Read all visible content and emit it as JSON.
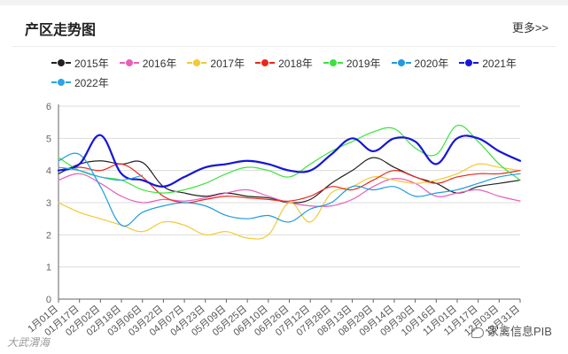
{
  "header": {
    "title": "产区走势图",
    "more_label": "更多>>"
  },
  "watermarks": {
    "left": "大武渭海",
    "right": "家禽信息PIB"
  },
  "chart_data": {
    "type": "line",
    "title": "产区走势图",
    "ylim": [
      0,
      6
    ],
    "yticks": [
      0,
      1,
      2,
      3,
      4,
      5,
      6
    ],
    "grid": true,
    "legend_position": "top",
    "categories": [
      "1月01日",
      "01月17日",
      "02月02日",
      "02月18日",
      "03月06日",
      "03月22日",
      "04月07日",
      "04月23日",
      "05月09日",
      "05月25日",
      "06月10日",
      "06月26日",
      "07月12日",
      "07月28日",
      "08月13日",
      "08月29日",
      "09月14日",
      "09月30日",
      "10月16日",
      "11月01日",
      "11月17日",
      "12月03日",
      "12月31日"
    ],
    "series": [
      {
        "name": "2015年",
        "color": "#222222",
        "width": 1.2,
        "values": [
          3.9,
          4.2,
          4.3,
          4.2,
          4.25,
          3.5,
          3.3,
          3.2,
          3.3,
          3.2,
          3.15,
          3.0,
          3.1,
          3.6,
          4.0,
          4.4,
          4.1,
          3.8,
          3.6,
          3.3,
          3.5,
          3.6,
          3.7
        ]
      },
      {
        "name": "2016年",
        "color": "#e75fb9",
        "width": 1.2,
        "values": [
          3.7,
          3.9,
          3.6,
          3.2,
          3.0,
          3.1,
          3.05,
          3.15,
          3.3,
          3.4,
          3.2,
          3.0,
          2.9,
          2.9,
          3.1,
          3.5,
          3.75,
          3.6,
          3.2,
          3.3,
          3.4,
          3.2,
          3.05
        ]
      },
      {
        "name": "2017年",
        "color": "#f2c935",
        "width": 1.2,
        "values": [
          3.0,
          2.7,
          2.5,
          2.3,
          2.1,
          2.4,
          2.3,
          2.0,
          2.1,
          1.9,
          2.0,
          3.0,
          2.4,
          3.3,
          3.5,
          3.8,
          3.7,
          3.6,
          3.7,
          3.9,
          4.2,
          4.1,
          4.0
        ]
      },
      {
        "name": "2018年",
        "color": "#e8281a",
        "width": 1.2,
        "values": [
          4.0,
          4.1,
          4.0,
          4.2,
          3.8,
          3.2,
          3.0,
          3.1,
          3.2,
          3.15,
          3.1,
          3.05,
          3.2,
          3.5,
          3.4,
          3.7,
          4.0,
          3.8,
          3.6,
          3.8,
          3.9,
          3.9,
          4.0
        ]
      },
      {
        "name": "2019年",
        "color": "#3be33b",
        "width": 1.2,
        "values": [
          4.4,
          4.0,
          3.8,
          3.7,
          3.4,
          3.3,
          3.4,
          3.6,
          3.9,
          4.1,
          4.0,
          3.8,
          4.2,
          4.6,
          4.9,
          5.2,
          5.3,
          4.7,
          4.5,
          5.4,
          4.9,
          4.2,
          3.7
        ]
      },
      {
        "name": "2020年",
        "color": "#1f9be0",
        "width": 1.2,
        "values": [
          4.3,
          4.5,
          3.5,
          2.3,
          2.7,
          2.9,
          3.0,
          2.9,
          2.6,
          2.5,
          2.6,
          2.4,
          2.8,
          3.0,
          3.5,
          3.4,
          3.5,
          3.2,
          3.3,
          3.4,
          3.6,
          3.8,
          3.9
        ]
      },
      {
        "name": "2021年",
        "color": "#1616d8",
        "width": 2.2,
        "values": [
          4.0,
          4.2,
          5.1,
          3.9,
          3.7,
          3.5,
          3.8,
          4.1,
          4.2,
          4.3,
          4.2,
          4.0,
          4.0,
          4.5,
          5.0,
          4.6,
          5.0,
          4.9,
          4.2,
          5.0,
          5.0,
          4.6,
          4.3
        ]
      },
      {
        "name": "2022年",
        "color": "#2aa5e8",
        "width": 1.2,
        "values": [
          4.1,
          4.0,
          3.8,
          3.7,
          3.85,
          null,
          null,
          null,
          null,
          null,
          null,
          null,
          null,
          null,
          null,
          null,
          null,
          null,
          null,
          null,
          null,
          null,
          null
        ]
      }
    ]
  }
}
